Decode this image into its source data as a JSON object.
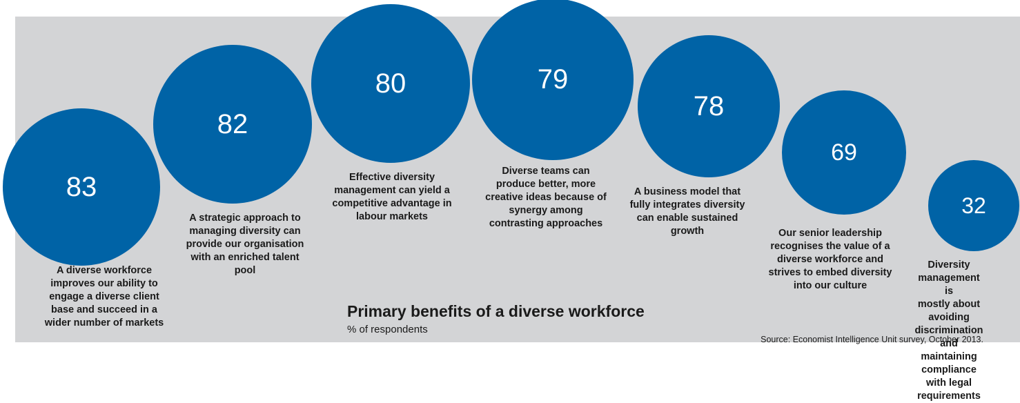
{
  "chart_data": {
    "type": "bubble",
    "title": "Primary benefits of a diverse workforce",
    "subtitle": "% of respondents",
    "source": "Source: Economist Intelligence Unit survey, October 2013.",
    "unit": "% of respondents",
    "color": "#0063a6",
    "series": [
      {
        "values": [
          83,
          82,
          80,
          79,
          78,
          69,
          32
        ],
        "labels": [
          "A diverse workforce improves our ability to engage a diverse client base and succeed in a wider number of markets",
          "A strategic approach to managing diversity can provide our organisation with an enriched talent pool",
          "Effective diversity management can yield a competitive advantage in labour markets",
          "Diverse teams can produce better, more creative ideas because of synergy among contrasting approaches",
          "A business model that fully integrates diversity can enable sustained growth",
          "Our senior leadership recognises the value of a diverse workforce and strives to embed diversity into our culture",
          "Diversity management is mostly about avoiding discrimination and maintaining compliance with legal requirements"
        ]
      }
    ],
    "label_lines": [
      [
        "A diverse workforce",
        "improves our ability to",
        "engage a diverse client",
        "base and succeed in a",
        "wider number of markets"
      ],
      [
        "A strategic approach to",
        "managing diversity can",
        "provide our organisation",
        "with an enriched talent",
        "pool"
      ],
      [
        "Effective diversity",
        "management can yield a",
        "competitive advantage in",
        "labour markets"
      ],
      [
        "Diverse teams can",
        "produce better, more",
        "creative ideas because of",
        "synergy among",
        "contrasting approaches"
      ],
      [
        "A business model that",
        "fully integrates diversity",
        "can enable sustained",
        "growth"
      ],
      [
        "Our senior leadership",
        "recognises the value of a",
        "diverse workforce and",
        "strives to embed diversity",
        "into our culture"
      ],
      [
        "Diversity management is",
        "mostly about avoiding",
        "discrimination and",
        "maintaining compliance",
        "with legal requirements"
      ]
    ]
  }
}
